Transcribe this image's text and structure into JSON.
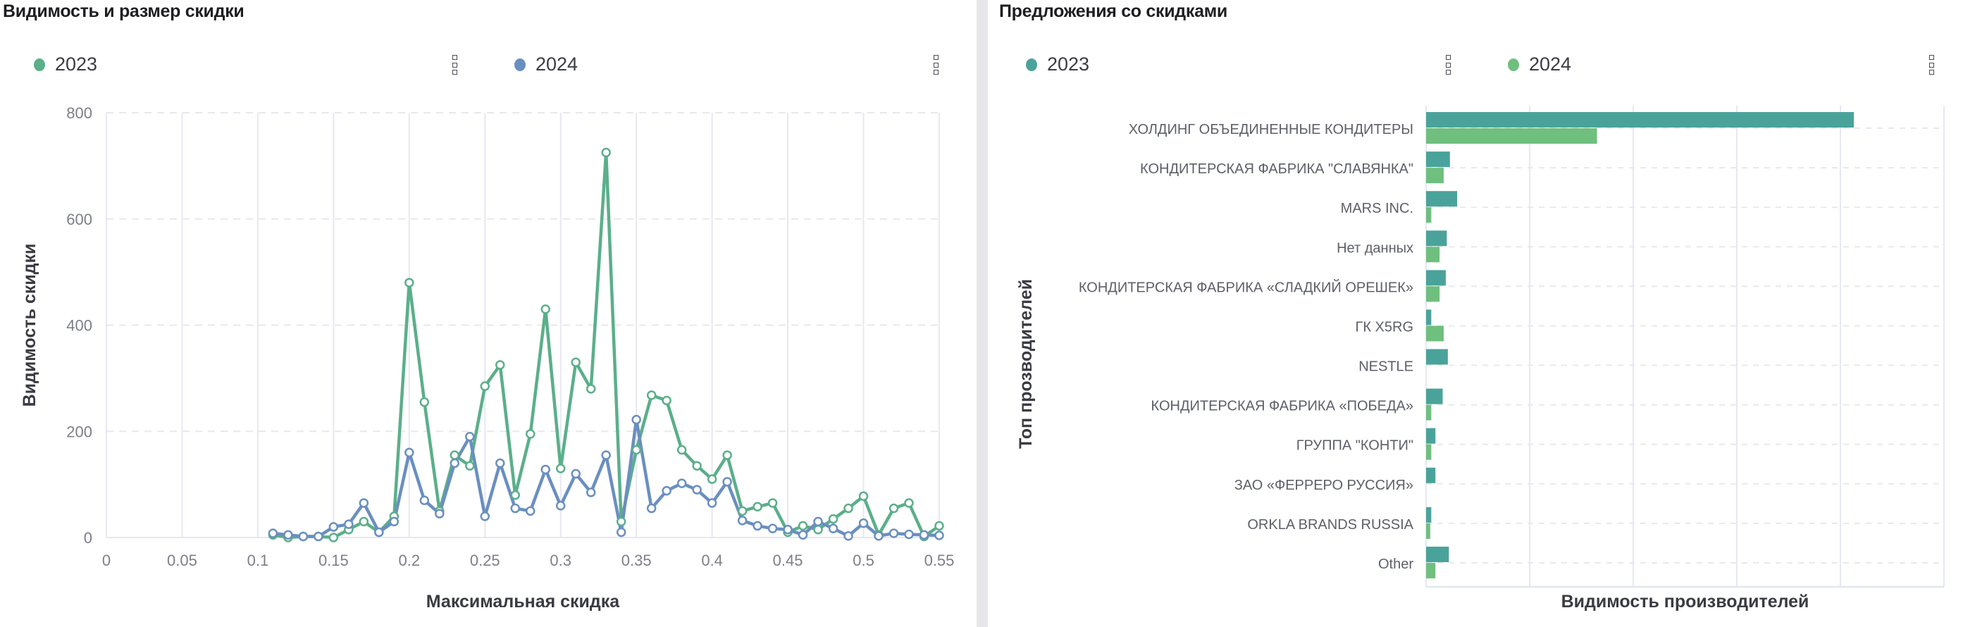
{
  "left_panel": {
    "title": "Видимость и размер скидки",
    "legend": [
      {
        "label": "2023",
        "color": "#5BAF8A"
      },
      {
        "label": "2024",
        "color": "#6A8FC0"
      }
    ],
    "menu_icon": "drag-handle-icon"
  },
  "right_panel": {
    "title": "Предложения со скидками",
    "legend": [
      {
        "label": "2023",
        "color": "#4AA39A"
      },
      {
        "label": "2024",
        "color": "#6FBF7F"
      }
    ],
    "menu_icon": "drag-handle-icon"
  },
  "chart_data": [
    {
      "type": "line",
      "title": "Видимость и размер скидки",
      "xlabel": "Максимальная скидка",
      "ylabel": "Видимость скидки",
      "xlim": [
        0,
        0.55
      ],
      "ylim": [
        0,
        800
      ],
      "x_ticks": [
        "0",
        "0.05",
        "0.1",
        "0.15",
        "0.2",
        "0.25",
        "0.3",
        "0.35",
        "0.4",
        "0.45",
        "0.5",
        "0.55"
      ],
      "y_ticks": [
        "0",
        "200",
        "400",
        "600",
        "800"
      ],
      "grid": true,
      "legend_position": "top",
      "x": [
        0.11,
        0.12,
        0.13,
        0.14,
        0.15,
        0.16,
        0.17,
        0.18,
        0.19,
        0.2,
        0.21,
        0.22,
        0.23,
        0.24,
        0.25,
        0.26,
        0.27,
        0.28,
        0.29,
        0.3,
        0.31,
        0.32,
        0.33,
        0.34,
        0.35,
        0.36,
        0.37,
        0.38,
        0.39,
        0.4,
        0.41,
        0.42,
        0.43,
        0.44,
        0.45,
        0.46,
        0.47,
        0.48,
        0.49,
        0.5,
        0.51,
        0.52,
        0.53,
        0.54,
        0.55
      ],
      "series": [
        {
          "name": "2023",
          "color": "#5BAF8A",
          "values": [
            5,
            0,
            2,
            2,
            0,
            15,
            30,
            10,
            40,
            480,
            255,
            50,
            155,
            135,
            285,
            325,
            80,
            195,
            430,
            130,
            330,
            280,
            725,
            30,
            165,
            268,
            258,
            165,
            135,
            110,
            155,
            50,
            58,
            65,
            10,
            22,
            15,
            35,
            55,
            78,
            5,
            55,
            65,
            2,
            22
          ]
        },
        {
          "name": "2024",
          "color": "#6A8FC0",
          "values": [
            8,
            5,
            2,
            2,
            20,
            25,
            65,
            10,
            30,
            160,
            70,
            45,
            140,
            190,
            40,
            140,
            55,
            50,
            128,
            60,
            120,
            85,
            155,
            10,
            222,
            55,
            88,
            102,
            90,
            65,
            105,
            32,
            22,
            17,
            15,
            5,
            30,
            17,
            3,
            27,
            3,
            8,
            6,
            5,
            4
          ]
        }
      ]
    },
    {
      "type": "bar",
      "orientation": "horizontal",
      "title": "Предложения со скидками",
      "xlabel": "Видимость производителей",
      "ylabel": "Топ прозводителей",
      "grid": true,
      "legend_position": "top",
      "x_tick_labels_visible": false,
      "x_gridline_units": 5,
      "categories": [
        "ХОЛДИНГ ОБЪЕДИНЕННЫЕ КОНДИТЕРЫ",
        "КОНДИТЕРСКАЯ ФАБРИКА \"СЛАВЯНКА\"",
        "MARS INC.",
        "Нет данных",
        "КОНДИТЕРСКАЯ ФАБРИКА «СЛАДКИЙ ОРЕШЕК»",
        "ГК X5RG",
        "NESTLE",
        "КОНДИТЕРСКАЯ ФАБРИКА «ПОБЕДА»",
        "ГРУППА \"КОНТИ\"",
        "ЗАО «ФЕРРЕРО РУССИЯ»",
        "ORKLA BRANDS RUSSIA",
        "Other"
      ],
      "series": [
        {
          "name": "2023",
          "color": "#4AA39A",
          "values": [
            4.13,
            0.23,
            0.3,
            0.2,
            0.19,
            0.05,
            0.21,
            0.16,
            0.09,
            0.09,
            0.05,
            0.22
          ]
        },
        {
          "name": "2024",
          "color": "#6FBF7F",
          "values": [
            1.65,
            0.17,
            0.05,
            0.13,
            0.13,
            0.17,
            0.0,
            0.05,
            0.05,
            0.0,
            0.04,
            0.09
          ]
        }
      ],
      "note": "values in gridline units (no tick labels visible)"
    }
  ]
}
